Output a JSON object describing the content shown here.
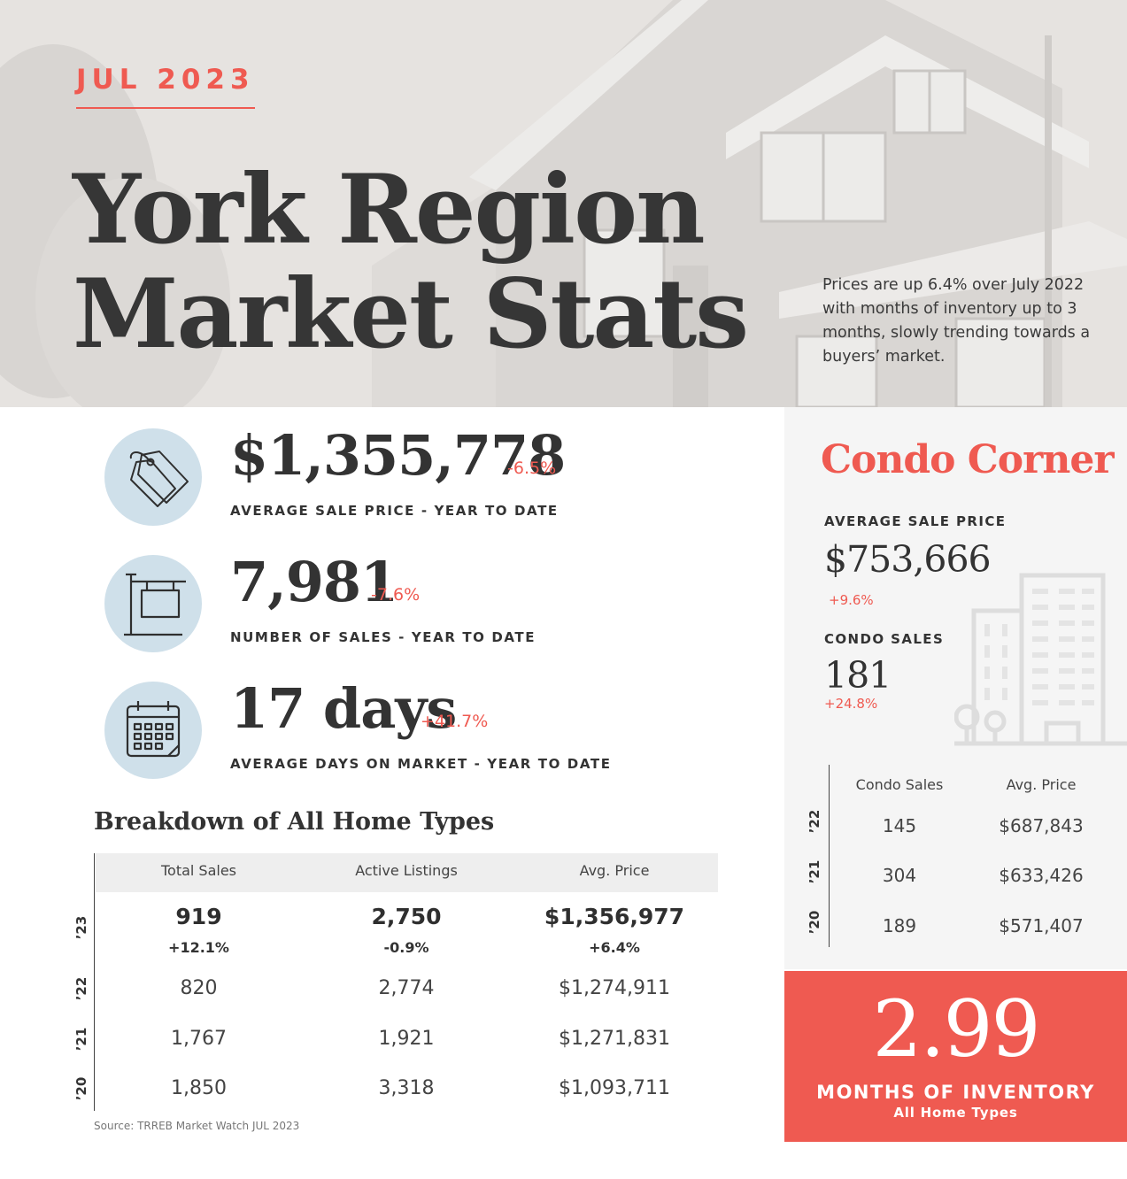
{
  "hero": {
    "month": "JUL 2023",
    "title_line1": "York Region",
    "title_line2": "Market Stats",
    "note": "Prices are up 6.4% over July 2022 with months of inventory up to 3 months, slowly trending towards a buyers’ market."
  },
  "stats": [
    {
      "icon": "price-tag-icon",
      "value": "$1,355,778",
      "change": "-6.5%",
      "label": "AVERAGE SALE PRICE - YEAR TO DATE"
    },
    {
      "icon": "for-sale-sign-icon",
      "value": "7,981",
      "change": "-7.6%",
      "label": "NUMBER OF SALES - YEAR TO DATE"
    },
    {
      "icon": "calendar-icon",
      "value": "17 days",
      "change": "+41.7%",
      "label": "AVERAGE DAYS ON MARKET - YEAR TO DATE"
    }
  ],
  "breakdown": {
    "title": "Breakdown of All Home Types",
    "headers": [
      "Total Sales",
      "Active Listings",
      "Avg. Price"
    ],
    "rows": [
      {
        "year": "’23",
        "total_sales": "919",
        "total_sales_change": "+12.1%",
        "active_listings": "2,750",
        "active_listings_change": "-0.9%",
        "avg_price": "$1,356,977",
        "avg_price_change": "+6.4%"
      },
      {
        "year": "’22",
        "total_sales": "820",
        "active_listings": "2,774",
        "avg_price": "$1,274,911"
      },
      {
        "year": "’21",
        "total_sales": "1,767",
        "active_listings": "1,921",
        "avg_price": "$1,271,831"
      },
      {
        "year": "’20",
        "total_sales": "1,850",
        "active_listings": "3,318",
        "avg_price": "$1,093,711"
      }
    ],
    "source": "Source: TRREB Market Watch JUL 2023"
  },
  "condo": {
    "title": "Condo Corner",
    "avg_price_label": "AVERAGE SALE PRICE",
    "avg_price_value": "$753,666",
    "avg_price_change": "+9.6%",
    "sales_label": "CONDO SALES",
    "sales_value": "181",
    "sales_change": "+24.8%",
    "headers": [
      "Condo Sales",
      "Avg. Price"
    ],
    "rows": [
      {
        "year": "’22",
        "sales": "145",
        "price": "$687,843"
      },
      {
        "year": "’21",
        "sales": "304",
        "price": "$633,426"
      },
      {
        "year": "’20",
        "sales": "189",
        "price": "$571,407"
      }
    ]
  },
  "inventory": {
    "value": "2.99",
    "label": "MONTHS OF INVENTORY",
    "sublabel": "All Home Types"
  },
  "colors": {
    "accent": "#ef5a51",
    "icon_circle": "#cfe0ea",
    "condo_panel": "#f5f5f5",
    "hero_bg": "#e6e3e0"
  }
}
